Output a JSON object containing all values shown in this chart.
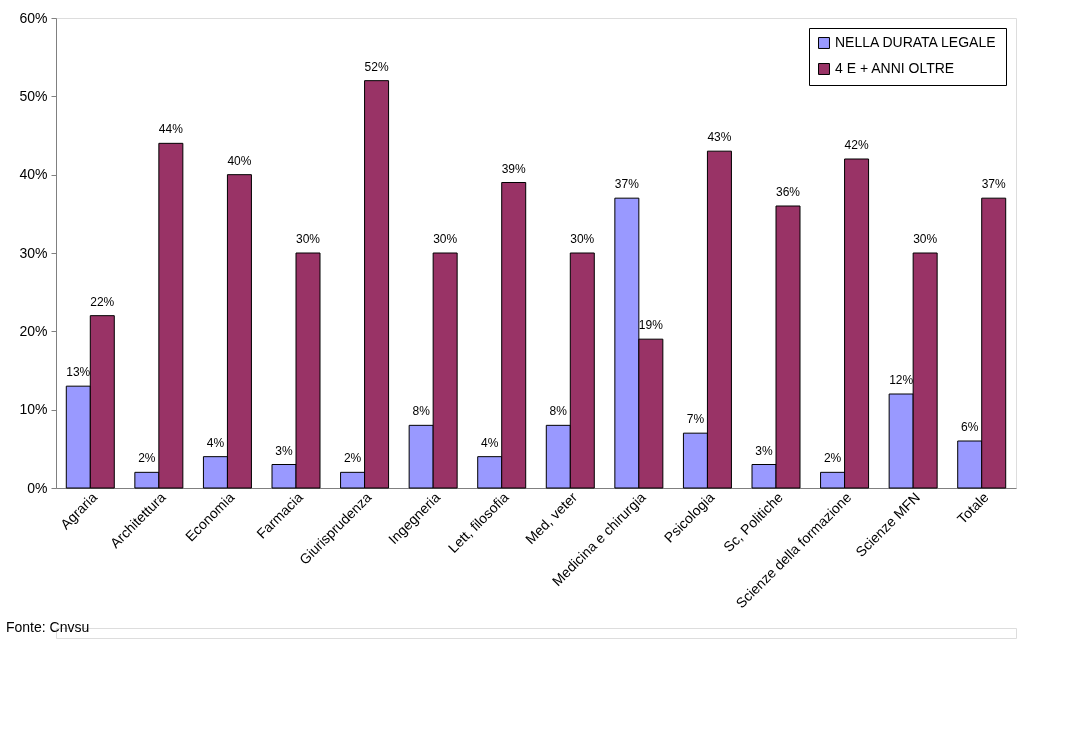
{
  "chart_data": {
    "type": "bar",
    "categories": [
      "Agraria",
      "Architettura",
      "Economia",
      "Farmacia",
      "Giurisprudenza",
      "Ingegneria",
      "Lett, filosofia",
      "Med, veter",
      "Medicina e chirurgia",
      "Psicologia",
      "Sc, Politiche",
      "Scienze della formazione",
      "Scienze MFN",
      "Totale"
    ],
    "series": [
      {
        "name": "NELLA DURATA LEGALE",
        "color": "#9999ff",
        "values": [
          13,
          2,
          4,
          3,
          2,
          8,
          4,
          8,
          37,
          7,
          3,
          2,
          12,
          6
        ],
        "value_labels": [
          "13%",
          "2%",
          "4%",
          "3%",
          "2%",
          "8%",
          "4%",
          "8%",
          "37%",
          "7%",
          "3%",
          "2%",
          "12%",
          "6%"
        ]
      },
      {
        "name": "4 E + ANNI OLTRE",
        "color": "#993366",
        "values": [
          22,
          44,
          40,
          30,
          52,
          30,
          39,
          30,
          19,
          43,
          36,
          42,
          30,
          37
        ],
        "value_labels": [
          "22%",
          "44%",
          "40%",
          "30%",
          "52%",
          "30%",
          "39%",
          "30%",
          "19%",
          "43%",
          "36%",
          "42%",
          "30%",
          "37%"
        ]
      }
    ],
    "ylim": [
      0,
      60
    ],
    "yticks": [
      {
        "value": 0,
        "label": "0%"
      },
      {
        "value": 10,
        "label": "10%"
      },
      {
        "value": 20,
        "label": "20%"
      },
      {
        "value": 30,
        "label": "30%"
      },
      {
        "value": 40,
        "label": "40%"
      },
      {
        "value": 50,
        "label": "50%"
      },
      {
        "value": 60,
        "label": "60%"
      }
    ],
    "grid": false,
    "legend": "top right",
    "annotations": [
      "Fonte: Cnvsu"
    ]
  }
}
